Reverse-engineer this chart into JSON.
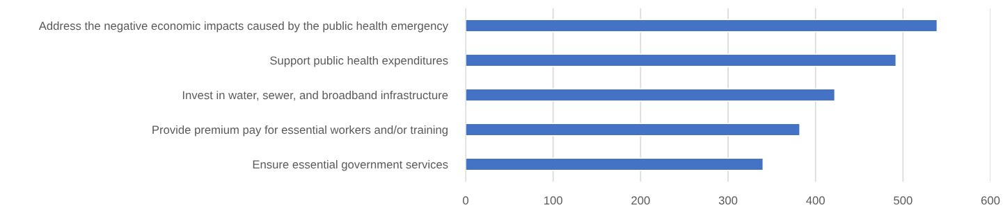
{
  "chart_data": {
    "type": "bar",
    "orientation": "horizontal",
    "categories": [
      "Address the negative economic impacts caused by the public health emergency",
      "Support public health expenditures",
      "Invest in water, sewer, and broadband infrastructure",
      "Provide premium pay for essential workers and/or training",
      "Ensure essential government services"
    ],
    "values": [
      539,
      492,
      422,
      382,
      340
    ],
    "color": "#4472c4",
    "xlim": [
      0,
      600
    ],
    "xticks": [
      0,
      100,
      200,
      300,
      400,
      500,
      600
    ],
    "grid": "x"
  }
}
